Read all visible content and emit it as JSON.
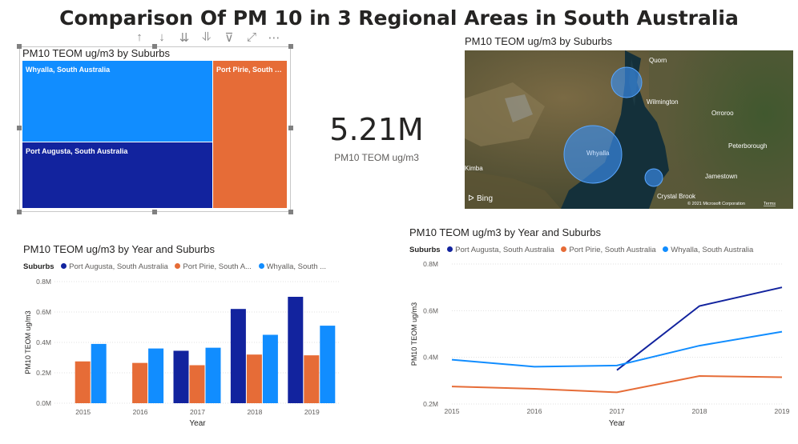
{
  "title": "Comparison Of PM 10 in 3 Regional Areas in South Australia",
  "toolbar": [
    "↑",
    "↓",
    "⇊",
    "⥥",
    "⊽",
    "⤢",
    "⋯"
  ],
  "colors": {
    "port_augusta": "#12239e",
    "port_pirie": "#e66c37",
    "whyalla": "#118dff"
  },
  "treemap": {
    "title": "PM10 TEOM ug/m3 by Suburbs",
    "cells": [
      {
        "label": "Whyalla, South Australia"
      },
      {
        "label": "Port Augusta, South Australia"
      },
      {
        "label": "Port Pirie, South Australia"
      }
    ]
  },
  "kpi": {
    "value": "5.21M",
    "label": "PM10 TEOM ug/m3"
  },
  "map": {
    "title": "PM10 TEOM ug/m3 by Suburbs",
    "places": [
      "Quorn",
      "Wilmington",
      "Orroroo",
      "Whyalla",
      "Peterborough",
      "Kimba",
      "Jamestown",
      "Crystal Brook"
    ],
    "bing": "Bing",
    "copyright": "© 2021 Microsoft Corporation",
    "terms": "Terms"
  },
  "bar_chart": {
    "title": "PM10 TEOM ug/m3 by Year and Suburbs",
    "legend_title": "Suburbs",
    "legend": [
      "Port Augusta, South Australia",
      "Port Pirie, South A...",
      "Whyalla, South ..."
    ],
    "xlabel": "Year",
    "ylabel": "PM10 TEOM ug/m3",
    "yticks": [
      "0.0M",
      "0.2M",
      "0.4M",
      "0.6M",
      "0.8M"
    ]
  },
  "line_chart": {
    "title": "PM10 TEOM ug/m3 by Year and Suburbs",
    "legend_title": "Suburbs",
    "legend": [
      "Port Augusta, South Australia",
      "Port Pirie, South Australia",
      "Whyalla, South Australia"
    ],
    "xlabel": "Year",
    "ylabel": "PM10 TEOM ug/m3",
    "yticks": [
      "0.2M",
      "0.4M",
      "0.6M",
      "0.8M"
    ]
  },
  "chart_data": [
    {
      "type": "bar",
      "title": "PM10 TEOM ug/m3 by Year and Suburbs",
      "categories": [
        "2015",
        "2016",
        "2017",
        "2018",
        "2019"
      ],
      "series": [
        {
          "name": "Port Augusta, South Australia",
          "values": [
            null,
            null,
            0.345,
            0.62,
            0.7
          ]
        },
        {
          "name": "Port Pirie, South Australia",
          "values": [
            0.275,
            0.265,
            0.25,
            0.32,
            0.315
          ]
        },
        {
          "name": "Whyalla, South Australia",
          "values": [
            0.39,
            0.36,
            0.365,
            0.45,
            0.51
          ]
        }
      ],
      "ylim": [
        0,
        0.8
      ],
      "xlabel": "Year",
      "ylabel": "PM10 TEOM ug/m3"
    },
    {
      "type": "line",
      "title": "PM10 TEOM ug/m3 by Year and Suburbs",
      "categories": [
        "2015",
        "2016",
        "2017",
        "2018",
        "2019"
      ],
      "series": [
        {
          "name": "Port Augusta, South Australia",
          "values": [
            null,
            null,
            0.345,
            0.62,
            0.7
          ]
        },
        {
          "name": "Port Pirie, South Australia",
          "values": [
            0.275,
            0.265,
            0.25,
            0.32,
            0.315
          ]
        },
        {
          "name": "Whyalla, South Australia",
          "values": [
            0.39,
            0.36,
            0.365,
            0.45,
            0.51
          ]
        }
      ],
      "ylim": [
        0.2,
        0.8
      ],
      "xlabel": "Year",
      "ylabel": "PM10 TEOM ug/m3"
    }
  ]
}
